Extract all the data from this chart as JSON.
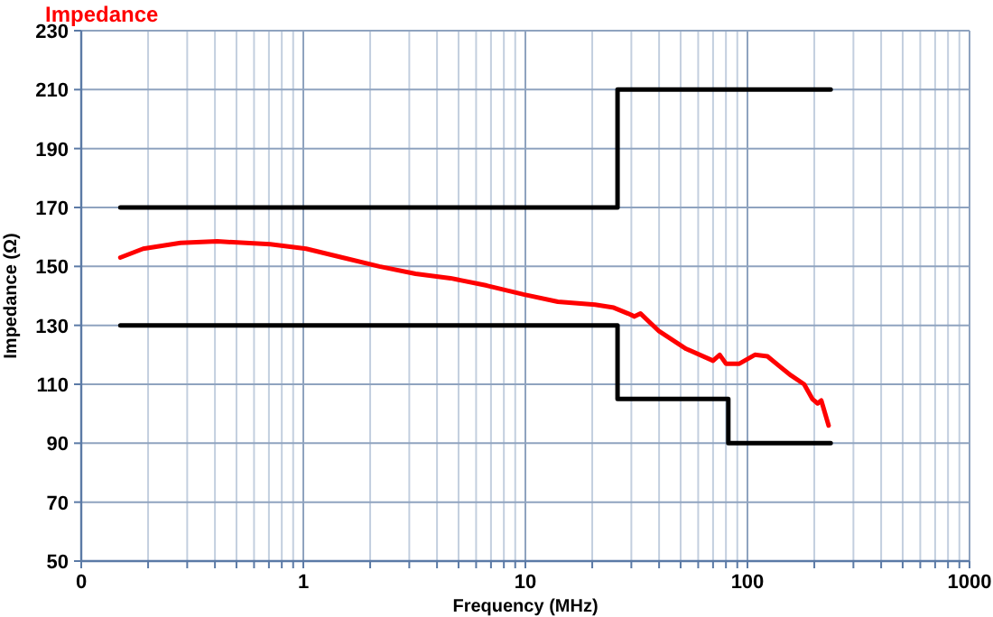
{
  "chart_data": {
    "type": "line",
    "title": "Impedance",
    "xlabel": "Frequency (MHz)",
    "ylabel": "Impedance (Ω)",
    "log": "x",
    "grid": true,
    "marker": "none",
    "line_style": "solid",
    "xlim": [
      0.1,
      1000
    ],
    "ylim": [
      50,
      230
    ],
    "xticks": [
      {
        "value": 0.1,
        "label": "0"
      },
      {
        "value": 0.2,
        "label": null
      },
      {
        "value": 0.3,
        "label": null
      },
      {
        "value": 0.4,
        "label": null
      },
      {
        "value": 0.5,
        "label": null
      },
      {
        "value": 0.6,
        "label": null
      },
      {
        "value": 0.7,
        "label": null
      },
      {
        "value": 0.8,
        "label": null
      },
      {
        "value": 0.9,
        "label": null
      },
      1,
      {
        "value": 2,
        "label": null
      },
      {
        "value": 3,
        "label": null
      },
      {
        "value": 4,
        "label": null
      },
      {
        "value": 5,
        "label": null
      },
      {
        "value": 6,
        "label": null
      },
      {
        "value": 7,
        "label": null
      },
      {
        "value": 8,
        "label": null
      },
      {
        "value": 9,
        "label": null
      },
      10,
      {
        "value": 20,
        "label": null
      },
      {
        "value": 30,
        "label": null
      },
      {
        "value": 40,
        "label": null
      },
      {
        "value": 50,
        "label": null
      },
      {
        "value": 60,
        "label": null
      },
      {
        "value": 70,
        "label": null
      },
      {
        "value": 80,
        "label": null
      },
      {
        "value": 90,
        "label": null
      },
      100,
      {
        "value": 200,
        "label": null
      },
      {
        "value": 300,
        "label": null
      },
      {
        "value": 400,
        "label": null
      },
      {
        "value": 500,
        "label": null
      },
      {
        "value": 600,
        "label": null
      },
      {
        "value": 700,
        "label": null
      },
      {
        "value": 800,
        "label": null
      },
      {
        "value": 900,
        "label": null
      },
      1000
    ],
    "yticks": [
      50,
      70,
      90,
      110,
      130,
      150,
      170,
      190,
      210,
      230
    ],
    "series": [
      {
        "color": "#000000",
        "x": [
          0.15,
          26,
          26,
          237
        ],
        "values": [
          170,
          170,
          210,
          210
        ]
      },
      {
        "color": "#000000",
        "x": [
          0.15,
          26,
          26,
          82,
          82,
          237
        ],
        "values": [
          130,
          130,
          105,
          105,
          90,
          90
        ]
      },
      {
        "color": "#ff0000",
        "x": [
          0.15,
          0.19,
          0.28,
          0.41,
          0.71,
          1.03,
          1.5,
          2.2,
          3.2,
          4.6,
          6.7,
          9.8,
          14,
          20.6,
          25,
          29,
          31,
          33,
          40,
          53,
          70,
          75,
          80,
          92,
          108,
          123,
          140,
          157,
          180,
          196,
          207,
          215,
          232
        ],
        "values": [
          153,
          156,
          158,
          158.5,
          157.5,
          156,
          153,
          150,
          147.5,
          146,
          143.5,
          140.5,
          138,
          137,
          136,
          134,
          133,
          134,
          128,
          122,
          118,
          120,
          117,
          117,
          120,
          119.5,
          116,
          113,
          110,
          105,
          103.5,
          104.5,
          96
        ]
      }
    ]
  }
}
